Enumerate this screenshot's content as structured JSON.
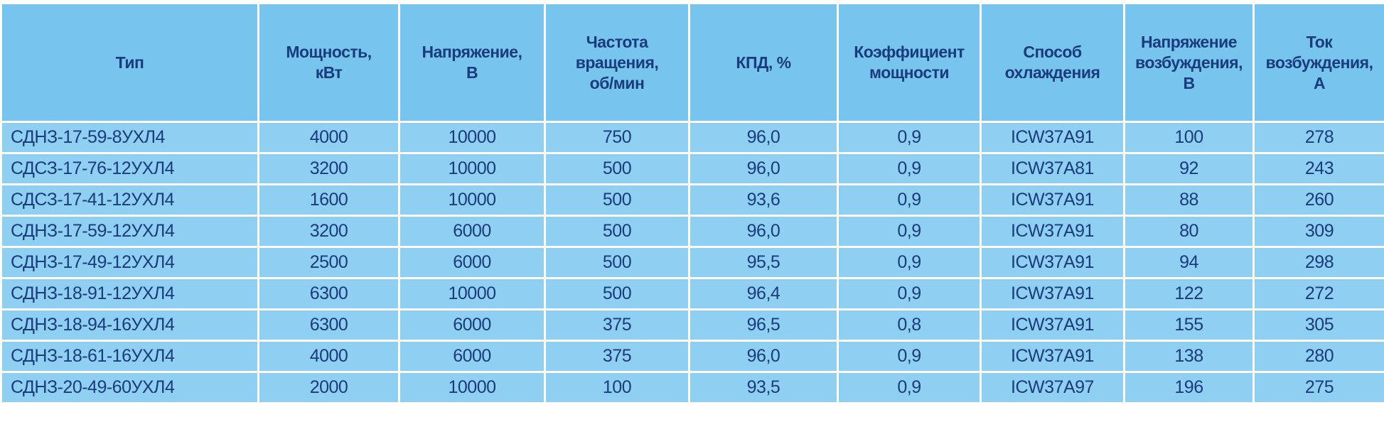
{
  "table": {
    "columns": [
      "Тип",
      "Мощность,\nкВт",
      "Напряжение,\nВ",
      "Частота\nвращения,\nоб/мин",
      "КПД, %",
      "Коэффициент\nмощности",
      "Способ\nохлаждения",
      "Напряжение\nвозбуждения,\nВ",
      "Ток\nвозбуждения,\nА"
    ],
    "rows": [
      [
        "СДНЗ-17-59-8УХЛ4",
        "4000",
        "10000",
        "750",
        "96,0",
        "0,9",
        "ICW37A91",
        "100",
        "278"
      ],
      [
        "СДСЗ-17-76-12УХЛ4",
        "3200",
        "10000",
        "500",
        "96,0",
        "0,9",
        "ICW37A81",
        "92",
        "243"
      ],
      [
        "СДСЗ-17-41-12УХЛ4",
        "1600",
        "10000",
        "500",
        "93,6",
        "0,9",
        "ICW37A91",
        "88",
        "260"
      ],
      [
        "СДНЗ-17-59-12УХЛ4",
        "3200",
        "6000",
        "500",
        "96,0",
        "0,9",
        "ICW37A91",
        "80",
        "309"
      ],
      [
        "СДНЗ-17-49-12УХЛ4",
        "2500",
        "6000",
        "500",
        "95,5",
        "0,9",
        "ICW37A91",
        "94",
        "298"
      ],
      [
        "СДНЗ-18-91-12УХЛ4",
        "6300",
        "10000",
        "500",
        "96,4",
        "0,9",
        "ICW37A91",
        "122",
        "272"
      ],
      [
        "СДНЗ-18-94-16УХЛ4",
        "6300",
        "6000",
        "375",
        "96,5",
        "0,8",
        "ICW37A91",
        "155",
        "305"
      ],
      [
        "СДНЗ-18-61-16УХЛ4",
        "4000",
        "6000",
        "375",
        "96,0",
        "0,9",
        "ICW37A91",
        "138",
        "280"
      ],
      [
        "СДНЗ-20-49-60УХЛ4",
        "2000",
        "10000",
        "100",
        "93,5",
        "0,9",
        "ICW37A97",
        "196",
        "275"
      ]
    ]
  }
}
